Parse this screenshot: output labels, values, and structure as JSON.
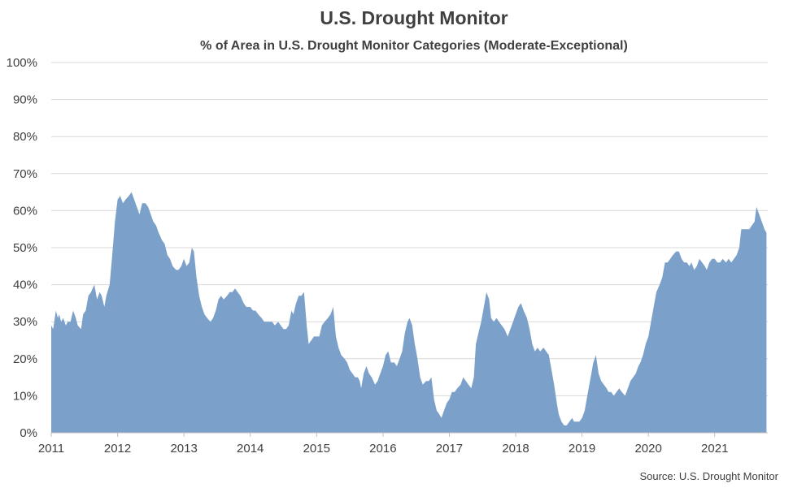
{
  "chart_data": {
    "type": "area",
    "title": "U.S. Drought Monitor",
    "subtitle": "% of Area in U.S. Drought Monitor Categories (Moderate-Exceptional)",
    "source": "Source: U.S. Drought Monitor",
    "xlabel": "",
    "ylabel": "",
    "x_tick_labels": [
      "2011",
      "2012",
      "2013",
      "2014",
      "2015",
      "2016",
      "2017",
      "2018",
      "2019",
      "2020",
      "2021"
    ],
    "y_tick_labels": [
      "0%",
      "10%",
      "20%",
      "30%",
      "40%",
      "50%",
      "60%",
      "70%",
      "80%",
      "90%",
      "100%"
    ],
    "xlim": [
      2011.0,
      2021.8
    ],
    "ylim": [
      0,
      100
    ],
    "grid": true,
    "legend": "none",
    "colors": {
      "fill": "#7ba1cb",
      "grid": "#d9d9d9",
      "axis": "#bfbfbf",
      "text": "#404040"
    },
    "series": [
      {
        "points": [
          [
            2011.0,
            29
          ],
          [
            2011.03,
            28
          ],
          [
            2011.07,
            33
          ],
          [
            2011.1,
            31
          ],
          [
            2011.12,
            32
          ],
          [
            2011.15,
            30
          ],
          [
            2011.18,
            31
          ],
          [
            2011.22,
            29
          ],
          [
            2011.25,
            30
          ],
          [
            2011.29,
            30
          ],
          [
            2011.33,
            33
          ],
          [
            2011.37,
            31
          ],
          [
            2011.4,
            29
          ],
          [
            2011.45,
            28
          ],
          [
            2011.48,
            32
          ],
          [
            2011.52,
            33
          ],
          [
            2011.56,
            37
          ],
          [
            2011.6,
            38
          ],
          [
            2011.65,
            40
          ],
          [
            2011.69,
            36
          ],
          [
            2011.73,
            38
          ],
          [
            2011.76,
            37
          ],
          [
            2011.8,
            34
          ],
          [
            2011.83,
            37
          ],
          [
            2011.88,
            40
          ],
          [
            2011.92,
            48
          ],
          [
            2011.96,
            57
          ],
          [
            2012.0,
            63
          ],
          [
            2012.04,
            64
          ],
          [
            2012.08,
            62
          ],
          [
            2012.12,
            63
          ],
          [
            2012.17,
            64
          ],
          [
            2012.21,
            65
          ],
          [
            2012.25,
            63
          ],
          [
            2012.29,
            61
          ],
          [
            2012.33,
            59
          ],
          [
            2012.37,
            62
          ],
          [
            2012.42,
            62
          ],
          [
            2012.46,
            61
          ],
          [
            2012.5,
            59
          ],
          [
            2012.54,
            57
          ],
          [
            2012.58,
            56
          ],
          [
            2012.62,
            54
          ],
          [
            2012.67,
            52
          ],
          [
            2012.71,
            51
          ],
          [
            2012.75,
            48
          ],
          [
            2012.79,
            47
          ],
          [
            2012.83,
            45
          ],
          [
            2012.88,
            44
          ],
          [
            2012.92,
            44
          ],
          [
            2012.96,
            45
          ],
          [
            2013.0,
            47
          ],
          [
            2013.04,
            45
          ],
          [
            2013.08,
            46
          ],
          [
            2013.12,
            50
          ],
          [
            2013.15,
            49
          ],
          [
            2013.19,
            42
          ],
          [
            2013.23,
            37
          ],
          [
            2013.27,
            34
          ],
          [
            2013.31,
            32
          ],
          [
            2013.35,
            31
          ],
          [
            2013.4,
            30
          ],
          [
            2013.44,
            31
          ],
          [
            2013.48,
            33
          ],
          [
            2013.52,
            36
          ],
          [
            2013.56,
            37
          ],
          [
            2013.6,
            36
          ],
          [
            2013.65,
            37
          ],
          [
            2013.69,
            38
          ],
          [
            2013.73,
            38
          ],
          [
            2013.77,
            39
          ],
          [
            2013.81,
            38
          ],
          [
            2013.85,
            37
          ],
          [
            2013.9,
            35
          ],
          [
            2013.94,
            34
          ],
          [
            2014.0,
            34
          ],
          [
            2014.04,
            33
          ],
          [
            2014.08,
            33
          ],
          [
            2014.12,
            32
          ],
          [
            2014.17,
            31
          ],
          [
            2014.21,
            30
          ],
          [
            2014.25,
            30
          ],
          [
            2014.29,
            30
          ],
          [
            2014.33,
            30
          ],
          [
            2014.37,
            29
          ],
          [
            2014.42,
            30
          ],
          [
            2014.46,
            29
          ],
          [
            2014.5,
            28
          ],
          [
            2014.54,
            28
          ],
          [
            2014.58,
            29
          ],
          [
            2014.62,
            33
          ],
          [
            2014.65,
            32
          ],
          [
            2014.69,
            35
          ],
          [
            2014.73,
            37
          ],
          [
            2014.77,
            37
          ],
          [
            2014.81,
            38
          ],
          [
            2014.85,
            29
          ],
          [
            2014.88,
            24
          ],
          [
            2014.92,
            25
          ],
          [
            2014.96,
            26
          ],
          [
            2015.0,
            26
          ],
          [
            2015.04,
            26
          ],
          [
            2015.08,
            29
          ],
          [
            2015.12,
            30
          ],
          [
            2015.17,
            31
          ],
          [
            2015.21,
            32
          ],
          [
            2015.25,
            34
          ],
          [
            2015.29,
            26
          ],
          [
            2015.33,
            23
          ],
          [
            2015.37,
            21
          ],
          [
            2015.42,
            20
          ],
          [
            2015.46,
            19
          ],
          [
            2015.5,
            17
          ],
          [
            2015.54,
            16
          ],
          [
            2015.58,
            15
          ],
          [
            2015.62,
            15
          ],
          [
            2015.65,
            14
          ],
          [
            2015.67,
            12
          ],
          [
            2015.71,
            16
          ],
          [
            2015.75,
            18
          ],
          [
            2015.79,
            16
          ],
          [
            2015.83,
            15
          ],
          [
            2015.88,
            13
          ],
          [
            2015.92,
            14
          ],
          [
            2015.96,
            16
          ],
          [
            2016.0,
            18
          ],
          [
            2016.04,
            21
          ],
          [
            2016.08,
            22
          ],
          [
            2016.12,
            19
          ],
          [
            2016.17,
            19
          ],
          [
            2016.21,
            18
          ],
          [
            2016.25,
            20
          ],
          [
            2016.29,
            22
          ],
          [
            2016.33,
            27
          ],
          [
            2016.37,
            30
          ],
          [
            2016.4,
            31
          ],
          [
            2016.44,
            29
          ],
          [
            2016.48,
            24
          ],
          [
            2016.52,
            20
          ],
          [
            2016.56,
            15
          ],
          [
            2016.6,
            13
          ],
          [
            2016.65,
            14
          ],
          [
            2016.69,
            14
          ],
          [
            2016.73,
            15
          ],
          [
            2016.77,
            9
          ],
          [
            2016.81,
            6
          ],
          [
            2016.85,
            5
          ],
          [
            2016.88,
            4
          ],
          [
            2016.92,
            6
          ],
          [
            2016.96,
            8
          ],
          [
            2017.0,
            9
          ],
          [
            2017.04,
            11
          ],
          [
            2017.08,
            11
          ],
          [
            2017.12,
            12
          ],
          [
            2017.17,
            13
          ],
          [
            2017.21,
            15
          ],
          [
            2017.25,
            14
          ],
          [
            2017.29,
            13
          ],
          [
            2017.33,
            12
          ],
          [
            2017.37,
            15
          ],
          [
            2017.4,
            24
          ],
          [
            2017.44,
            27
          ],
          [
            2017.48,
            30
          ],
          [
            2017.52,
            34
          ],
          [
            2017.56,
            38
          ],
          [
            2017.6,
            36
          ],
          [
            2017.63,
            31
          ],
          [
            2017.67,
            30
          ],
          [
            2017.71,
            31
          ],
          [
            2017.75,
            30
          ],
          [
            2017.79,
            29
          ],
          [
            2017.83,
            28
          ],
          [
            2017.88,
            26
          ],
          [
            2017.92,
            28
          ],
          [
            2017.96,
            30
          ],
          [
            2018.0,
            32
          ],
          [
            2018.04,
            34
          ],
          [
            2018.08,
            35
          ],
          [
            2018.12,
            33
          ],
          [
            2018.17,
            31
          ],
          [
            2018.21,
            28
          ],
          [
            2018.25,
            24
          ],
          [
            2018.29,
            22
          ],
          [
            2018.33,
            23
          ],
          [
            2018.37,
            22
          ],
          [
            2018.42,
            23
          ],
          [
            2018.46,
            22
          ],
          [
            2018.5,
            21
          ],
          [
            2018.54,
            17
          ],
          [
            2018.58,
            13
          ],
          [
            2018.62,
            8
          ],
          [
            2018.65,
            5
          ],
          [
            2018.69,
            3
          ],
          [
            2018.73,
            2
          ],
          [
            2018.77,
            2
          ],
          [
            2018.81,
            3
          ],
          [
            2018.85,
            4
          ],
          [
            2018.88,
            3
          ],
          [
            2018.92,
            3
          ],
          [
            2018.96,
            3
          ],
          [
            2019.0,
            4
          ],
          [
            2019.04,
            6
          ],
          [
            2019.08,
            10
          ],
          [
            2019.12,
            14
          ],
          [
            2019.17,
            19
          ],
          [
            2019.21,
            21
          ],
          [
            2019.25,
            16
          ],
          [
            2019.29,
            14
          ],
          [
            2019.33,
            13
          ],
          [
            2019.37,
            12
          ],
          [
            2019.4,
            11
          ],
          [
            2019.44,
            11
          ],
          [
            2019.48,
            10
          ],
          [
            2019.52,
            11
          ],
          [
            2019.56,
            12
          ],
          [
            2019.6,
            11
          ],
          [
            2019.65,
            10
          ],
          [
            2019.69,
            12
          ],
          [
            2019.73,
            14
          ],
          [
            2019.77,
            15
          ],
          [
            2019.81,
            16
          ],
          [
            2019.85,
            18
          ],
          [
            2019.88,
            19
          ],
          [
            2019.92,
            21
          ],
          [
            2019.96,
            24
          ],
          [
            2020.0,
            26
          ],
          [
            2020.04,
            30
          ],
          [
            2020.08,
            34
          ],
          [
            2020.12,
            38
          ],
          [
            2020.17,
            40
          ],
          [
            2020.21,
            42
          ],
          [
            2020.25,
            46
          ],
          [
            2020.29,
            46
          ],
          [
            2020.33,
            47
          ],
          [
            2020.37,
            48
          ],
          [
            2020.42,
            49
          ],
          [
            2020.46,
            49
          ],
          [
            2020.5,
            47
          ],
          [
            2020.54,
            46
          ],
          [
            2020.58,
            46
          ],
          [
            2020.62,
            45
          ],
          [
            2020.65,
            46
          ],
          [
            2020.69,
            44
          ],
          [
            2020.73,
            45
          ],
          [
            2020.77,
            47
          ],
          [
            2020.81,
            46
          ],
          [
            2020.85,
            45
          ],
          [
            2020.88,
            44
          ],
          [
            2020.92,
            46
          ],
          [
            2020.96,
            47
          ],
          [
            2021.0,
            47
          ],
          [
            2021.04,
            46
          ],
          [
            2021.08,
            46
          ],
          [
            2021.12,
            47
          ],
          [
            2021.17,
            46
          ],
          [
            2021.21,
            47
          ],
          [
            2021.25,
            46
          ],
          [
            2021.29,
            47
          ],
          [
            2021.33,
            48
          ],
          [
            2021.37,
            50
          ],
          [
            2021.4,
            55
          ],
          [
            2021.44,
            55
          ],
          [
            2021.48,
            55
          ],
          [
            2021.52,
            55
          ],
          [
            2021.56,
            56
          ],
          [
            2021.6,
            57
          ],
          [
            2021.63,
            61
          ],
          [
            2021.67,
            59
          ],
          [
            2021.71,
            57
          ],
          [
            2021.75,
            55
          ],
          [
            2021.78,
            54
          ]
        ]
      }
    ]
  }
}
